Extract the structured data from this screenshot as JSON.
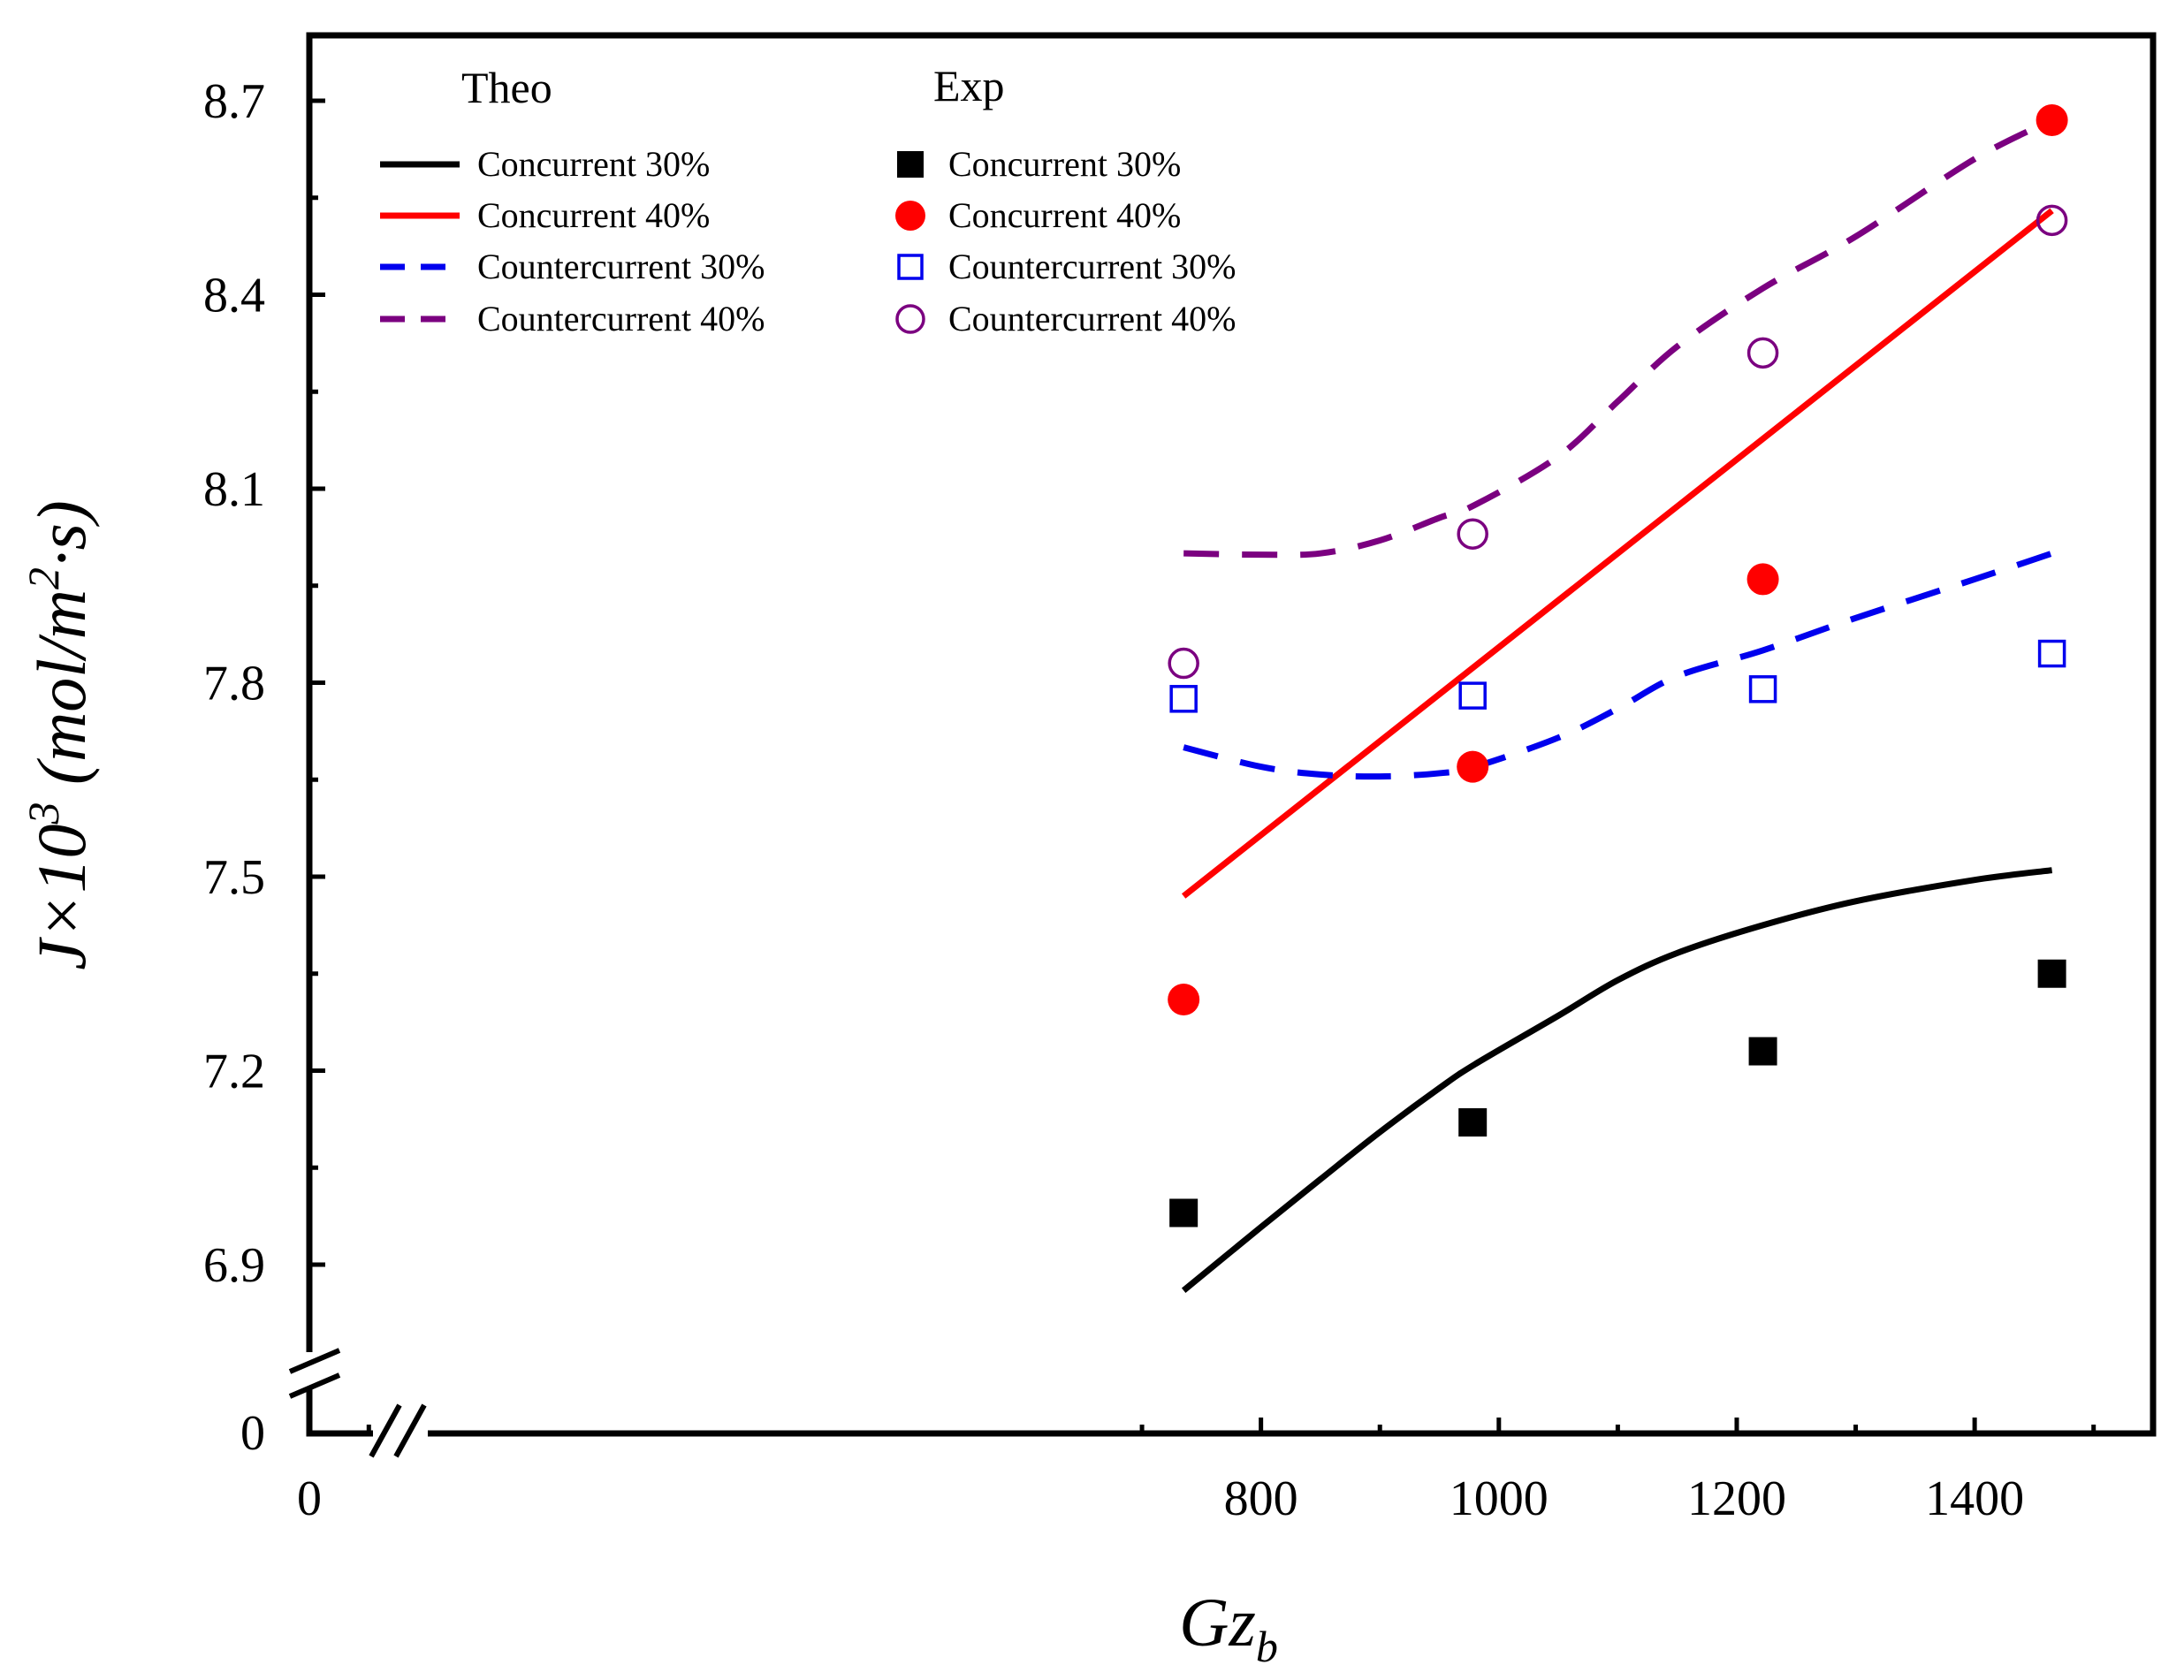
{
  "chart_data": {
    "type": "line",
    "xlabel": "Gz",
    "xlabel_sub": "b",
    "ylabel": "J×10",
    "ylabel_sup": "3",
    "ylabel_units_a": "(mol/m",
    "ylabel_units_sup": "2",
    "ylabel_units_b": "·s)",
    "xlim": [
      0,
      1550
    ],
    "ylim": [
      6.8,
      8.8
    ],
    "x_ticks": [
      0,
      800,
      1000,
      1200,
      1400
    ],
    "y_ticks": [
      6.9,
      7.2,
      7.5,
      7.8,
      8.1,
      8.4,
      8.7
    ],
    "y_tick_labels": [
      "6.9",
      "7.2",
      "7.5",
      "7.8",
      "8.1",
      "8.4",
      "8.7"
    ],
    "y_break_label": "0",
    "axis_breaks": [
      "x",
      "y"
    ],
    "legend": {
      "theo_header": "Theo",
      "exp_header": "Exp",
      "position": "top-left"
    },
    "series_theo": [
      {
        "name": "Concurrent 30%",
        "color": "#000000",
        "dash": "solid",
        "x": [
          735,
          800,
          850,
          900,
          950,
          980,
          1050,
          1100,
          1150,
          1222,
          1300,
          1400,
          1465
        ],
        "y": [
          6.86,
          6.958,
          7.032,
          7.105,
          7.173,
          7.21,
          7.285,
          7.34,
          7.382,
          7.425,
          7.462,
          7.495,
          7.51
        ]
      },
      {
        "name": "Concurrent 40%",
        "color": "#ff0000",
        "dash": "solid",
        "x": [
          735,
          1465
        ],
        "y": [
          7.47,
          8.53
        ]
      },
      {
        "name": "Countercurrent 30%",
        "color": "#0000ee",
        "dash": "dash",
        "x": [
          735,
          800,
          850,
          900,
          950,
          980,
          1050,
          1100,
          1150,
          1222,
          1300,
          1400,
          1465
        ],
        "y": [
          7.7,
          7.67,
          7.658,
          7.655,
          7.66,
          7.67,
          7.715,
          7.76,
          7.81,
          7.85,
          7.9,
          7.96,
          8.0
        ]
      },
      {
        "name": "Countercurrent 40%",
        "color": "#7b0080",
        "dash": "dash",
        "x": [
          735,
          800,
          850,
          900,
          950,
          980,
          1050,
          1100,
          1150,
          1222,
          1300,
          1400,
          1465
        ],
        "y": [
          8.0,
          7.998,
          8.0,
          8.02,
          8.055,
          8.075,
          8.15,
          8.235,
          8.32,
          8.41,
          8.49,
          8.61,
          8.67
        ]
      }
    ],
    "series_exp": [
      {
        "name": "Concurrent 30%",
        "color": "#000000",
        "marker": "filled-square",
        "x": [
          735,
          978,
          1222,
          1465
        ],
        "y": [
          6.98,
          7.12,
          7.23,
          7.35
        ]
      },
      {
        "name": "Concurrent 40%",
        "color": "#ff0000",
        "marker": "filled-circle",
        "x": [
          735,
          978,
          1222,
          1465
        ],
        "y": [
          7.31,
          7.67,
          7.96,
          8.67
        ]
      },
      {
        "name": "Countercurrent 30%",
        "color": "#0000ee",
        "marker": "open-square",
        "x": [
          735,
          978,
          1222,
          1465
        ],
        "y": [
          7.775,
          7.78,
          7.79,
          7.845
        ]
      },
      {
        "name": "Countercurrent 40%",
        "color": "#7b0080",
        "marker": "open-circle",
        "x": [
          735,
          978,
          1222,
          1465
        ],
        "y": [
          7.83,
          8.03,
          8.31,
          8.515
        ]
      }
    ]
  }
}
